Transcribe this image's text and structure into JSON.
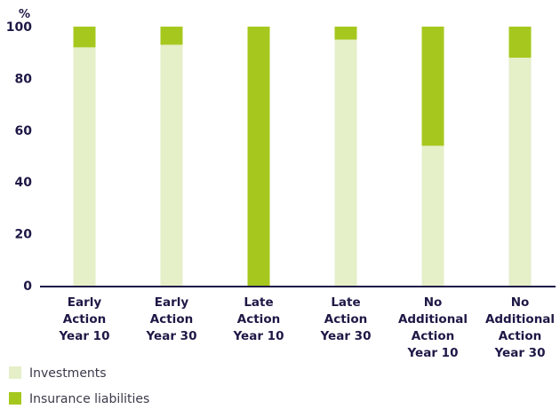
{
  "chart_data": {
    "type": "bar",
    "stacked": true,
    "ylabel": "%",
    "ylim": [
      0,
      100
    ],
    "yticks": [
      0,
      20,
      40,
      60,
      80,
      100
    ],
    "grid": false,
    "legend_position": "bottom-left",
    "categories": [
      [
        "Early",
        "Action",
        "Year 10"
      ],
      [
        "Early",
        "Action",
        "Year 30"
      ],
      [
        "Late",
        "Action",
        "Year 10"
      ],
      [
        "Late",
        "Action",
        "Year 30"
      ],
      [
        "No",
        "Additional",
        "Action",
        "Year 10"
      ],
      [
        "No",
        "Additional",
        "Action",
        "Year 30"
      ]
    ],
    "series": [
      {
        "name": "Investments",
        "color": "#e5efc8",
        "values": [
          92,
          93,
          0,
          95,
          54,
          88
        ]
      },
      {
        "name": "Insurance liabilities",
        "color": "#a6c81e",
        "values": [
          8,
          7,
          100,
          5,
          46,
          12
        ]
      }
    ]
  }
}
